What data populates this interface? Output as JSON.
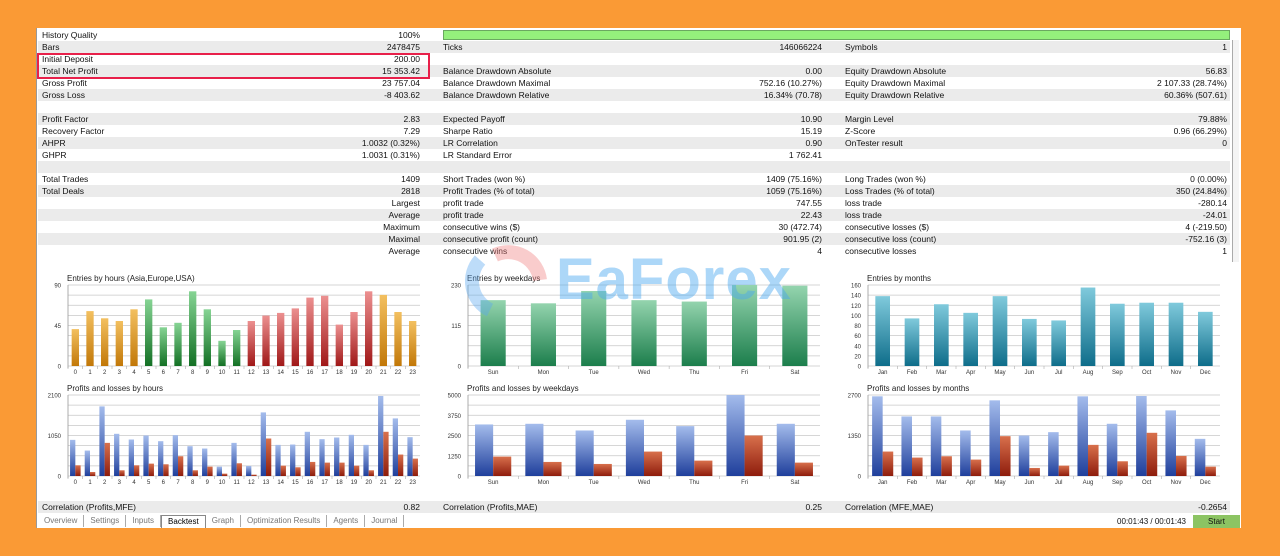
{
  "colors": {
    "background": "#fa9a35",
    "highlight_box": "#e8204a",
    "progress": "#94f07c",
    "start_button": "#8cc463"
  },
  "history_quality": {
    "label": "History Quality",
    "value": "100%",
    "progress_percent": 100
  },
  "rows": [
    [
      [
        "Bars",
        "2478475"
      ],
      [
        "Ticks",
        "146066224"
      ],
      [
        "Symbols",
        "1"
      ]
    ],
    [
      [
        "Initial Deposit",
        "200.00"
      ],
      [
        "",
        ""
      ],
      [
        "",
        ""
      ]
    ],
    [
      [
        "Total Net Profit",
        "15 353.42"
      ],
      [
        "Balance Drawdown Absolute",
        "0.00"
      ],
      [
        "Equity Drawdown Absolute",
        "56.83"
      ]
    ],
    [
      [
        "Gross Profit",
        "23 757.04"
      ],
      [
        "Balance Drawdown Maximal",
        "752.16 (10.27%)"
      ],
      [
        "Equity Drawdown Maximal",
        "2 107.33 (28.74%)"
      ]
    ],
    [
      [
        "Gross Loss",
        "-8 403.62"
      ],
      [
        "Balance Drawdown Relative",
        "16.34% (70.78)"
      ],
      [
        "Equity Drawdown Relative",
        "60.36% (507.61)"
      ]
    ],
    [
      [
        "",
        ""
      ],
      [
        "",
        ""
      ],
      [
        "",
        ""
      ]
    ],
    [
      [
        "Profit Factor",
        "2.83"
      ],
      [
        "Expected Payoff",
        "10.90"
      ],
      [
        "Margin Level",
        "79.88%"
      ]
    ],
    [
      [
        "Recovery Factor",
        "7.29"
      ],
      [
        "Sharpe Ratio",
        "15.19"
      ],
      [
        "Z-Score",
        "0.96 (66.29%)"
      ]
    ],
    [
      [
        "AHPR",
        "1.0032 (0.32%)"
      ],
      [
        "LR Correlation",
        "0.90"
      ],
      [
        "OnTester result",
        "0"
      ]
    ],
    [
      [
        "GHPR",
        "1.0031 (0.31%)"
      ],
      [
        "LR Standard Error",
        "1 762.41"
      ],
      [
        "",
        ""
      ]
    ],
    [
      [
        "",
        ""
      ],
      [
        "",
        ""
      ],
      [
        "",
        ""
      ]
    ],
    [
      [
        "Total Trades",
        "1409"
      ],
      [
        "Short Trades (won %)",
        "1409 (75.16%)"
      ],
      [
        "Long Trades (won %)",
        "0 (0.00%)"
      ]
    ],
    [
      [
        "Total Deals",
        "2818"
      ],
      [
        "Profit Trades (% of total)",
        "1059 (75.16%)"
      ],
      [
        "Loss Trades (% of total)",
        "350 (24.84%)"
      ]
    ],
    [
      [
        "",
        "Largest"
      ],
      [
        "profit trade",
        "747.55"
      ],
      [
        "loss trade",
        "-280.14"
      ]
    ],
    [
      [
        "",
        "Average"
      ],
      [
        "profit trade",
        "22.43"
      ],
      [
        "loss trade",
        "-24.01"
      ]
    ],
    [
      [
        "",
        "Maximum"
      ],
      [
        "consecutive wins ($)",
        "30 (472.74)"
      ],
      [
        "consecutive losses ($)",
        "4 (-219.50)"
      ]
    ],
    [
      [
        "",
        "Maximal"
      ],
      [
        "consecutive profit (count)",
        "901.95 (2)"
      ],
      [
        "consecutive loss (count)",
        "-752.16 (3)"
      ]
    ],
    [
      [
        "",
        "Average"
      ],
      [
        "consecutive wins",
        "4"
      ],
      [
        "consecutive losses",
        "1"
      ]
    ]
  ],
  "correlation": [
    [
      "Correlation (Profits,MFE)",
      "0.82"
    ],
    [
      "Correlation (Profits,MAE)",
      "0.25"
    ],
    [
      "Correlation (MFE,MAE)",
      "-0.2654"
    ]
  ],
  "tabs": [
    "Overview",
    "Settings",
    "Inputs",
    "Backtest",
    "Graph",
    "Optimization Results",
    "Agents",
    "Journal"
  ],
  "active_tab": "Backtest",
  "timer": "00:01:43 / 00:01:43",
  "start_label": "Start",
  "watermark": "EaForex",
  "chart_data": [
    {
      "type": "bar",
      "title": "Entries by hours (Asia,Europe,USA)",
      "ylim": [
        0,
        90
      ],
      "yticks": [
        0,
        45,
        90
      ],
      "grid_divisions": 8,
      "categories": [
        "0",
        "1",
        "2",
        "3",
        "4",
        "5",
        "6",
        "7",
        "8",
        "9",
        "10",
        "11",
        "12",
        "13",
        "14",
        "15",
        "16",
        "17",
        "18",
        "19",
        "20",
        "21",
        "22",
        "23"
      ],
      "series": [
        {
          "name": "Entries",
          "values": [
            41,
            61,
            53,
            50,
            63,
            74,
            43,
            48,
            83,
            63,
            28,
            40,
            50,
            56,
            59,
            64,
            76,
            78,
            46,
            60,
            83,
            79,
            60,
            50
          ]
        }
      ],
      "sessions": [
        "asia",
        "asia",
        "asia",
        "asia",
        "asia",
        "europe",
        "europe",
        "europe",
        "europe",
        "europe",
        "europe",
        "europe",
        "usa",
        "usa",
        "usa",
        "usa",
        "usa",
        "usa",
        "usa",
        "usa",
        "usa",
        "asia",
        "asia",
        "asia"
      ],
      "session_colors": {
        "asia": [
          "#f3c060",
          "#c27808"
        ],
        "europe": [
          "#86d494",
          "#137024"
        ],
        "usa": [
          "#ec9090",
          "#a01818"
        ]
      }
    },
    {
      "type": "bar",
      "title": "Entries by weekdays",
      "ylim": [
        0,
        230
      ],
      "yticks": [
        0,
        115,
        230
      ],
      "grid_divisions": 8,
      "categories": [
        "Sun",
        "Mon",
        "Tue",
        "Wed",
        "Thu",
        "Fri",
        "Sat"
      ],
      "series": [
        {
          "name": "Entries",
          "values": [
            187,
            178,
            213,
            187,
            183,
            230,
            228
          ],
          "colors": [
            "#94d4ae",
            "#1c7e4c"
          ]
        }
      ]
    },
    {
      "type": "bar",
      "title": "Entries by months",
      "ylim": [
        0,
        160
      ],
      "yticks": [
        0,
        20,
        40,
        60,
        80,
        100,
        120,
        140,
        160
      ],
      "grid_divisions": 8,
      "categories": [
        "Jan",
        "Feb",
        "Mar",
        "Apr",
        "May",
        "Jun",
        "Jul",
        "Aug",
        "Sep",
        "Oct",
        "Nov",
        "Dec"
      ],
      "series": [
        {
          "name": "Entries",
          "values": [
            138,
            94,
            122,
            105,
            138,
            93,
            90,
            155,
            123,
            125,
            125,
            107
          ],
          "colors": [
            "#80cadc",
            "#0e6d8a"
          ]
        }
      ]
    },
    {
      "type": "bar",
      "title": "Profits and losses by hours",
      "ylim": [
        0,
        2100
      ],
      "yticks": [
        0,
        1050,
        2100
      ],
      "grid_divisions": 8,
      "categories": [
        "0",
        "1",
        "2",
        "3",
        "4",
        "5",
        "6",
        "7",
        "8",
        "9",
        "10",
        "11",
        "12",
        "13",
        "14",
        "15",
        "16",
        "17",
        "18",
        "19",
        "20",
        "21",
        "22",
        "23"
      ],
      "series": [
        {
          "name": "Profits",
          "values": [
            937,
            660,
            1805,
            1094,
            946,
            1050,
            903,
            1059,
            773,
            712,
            243,
            859,
            260,
            1649,
            807,
            816,
            1146,
            955,
            998,
            1068,
            807,
            2075,
            1493,
            1007
          ],
          "colors": [
            "#a4bcec",
            "#1f3f9c"
          ]
        },
        {
          "name": "Losses",
          "values": [
            278,
            104,
            859,
            148,
            278,
            321,
            304,
            512,
            148,
            243,
            61,
            330,
            35,
            972,
            269,
            226,
            365,
            347,
            347,
            269,
            148,
            1146,
            556,
            451
          ],
          "colors": [
            "#d8704c",
            "#8e1c0c"
          ]
        }
      ]
    },
    {
      "type": "bar",
      "title": "Profits and losses by weekdays",
      "ylim": [
        0,
        5000
      ],
      "yticks": [
        0,
        1250,
        2500,
        3750,
        5000
      ],
      "grid_divisions": 8,
      "categories": [
        "Sun",
        "Mon",
        "Tue",
        "Wed",
        "Thu",
        "Fri",
        "Sat"
      ],
      "series": [
        {
          "name": "Profits",
          "values": [
            3182,
            3223,
            2810,
            3471,
            3079,
            5000,
            3223
          ],
          "colors": [
            "#a4bcec",
            "#1f3f9c"
          ]
        },
        {
          "name": "Losses",
          "values": [
            1198,
            868,
            744,
            1508,
            950,
            2500,
            826
          ],
          "colors": [
            "#d8704c",
            "#8e1c0c"
          ]
        }
      ]
    },
    {
      "type": "bar",
      "title": "Profits and losses by months",
      "ylim": [
        0,
        2700
      ],
      "yticks": [
        0,
        1350,
        2700
      ],
      "grid_divisions": 8,
      "categories": [
        "Jan",
        "Feb",
        "Mar",
        "Apr",
        "May",
        "Jun",
        "Jul",
        "Aug",
        "Sep",
        "Oct",
        "Nov",
        "Dec"
      ],
      "series": [
        {
          "name": "Profits",
          "values": [
            2656,
            1986,
            1986,
            1518,
            2522,
            1350,
            1462,
            2656,
            1741,
            2667,
            2187,
            1239
          ],
          "colors": [
            "#a4bcec",
            "#1f3f9c"
          ]
        },
        {
          "name": "Losses",
          "values": [
            815,
            614,
            658,
            547,
            1328,
            268,
            346,
            1038,
            491,
            1440,
            670,
            312
          ],
          "colors": [
            "#d8704c",
            "#8e1c0c"
          ]
        }
      ]
    }
  ]
}
